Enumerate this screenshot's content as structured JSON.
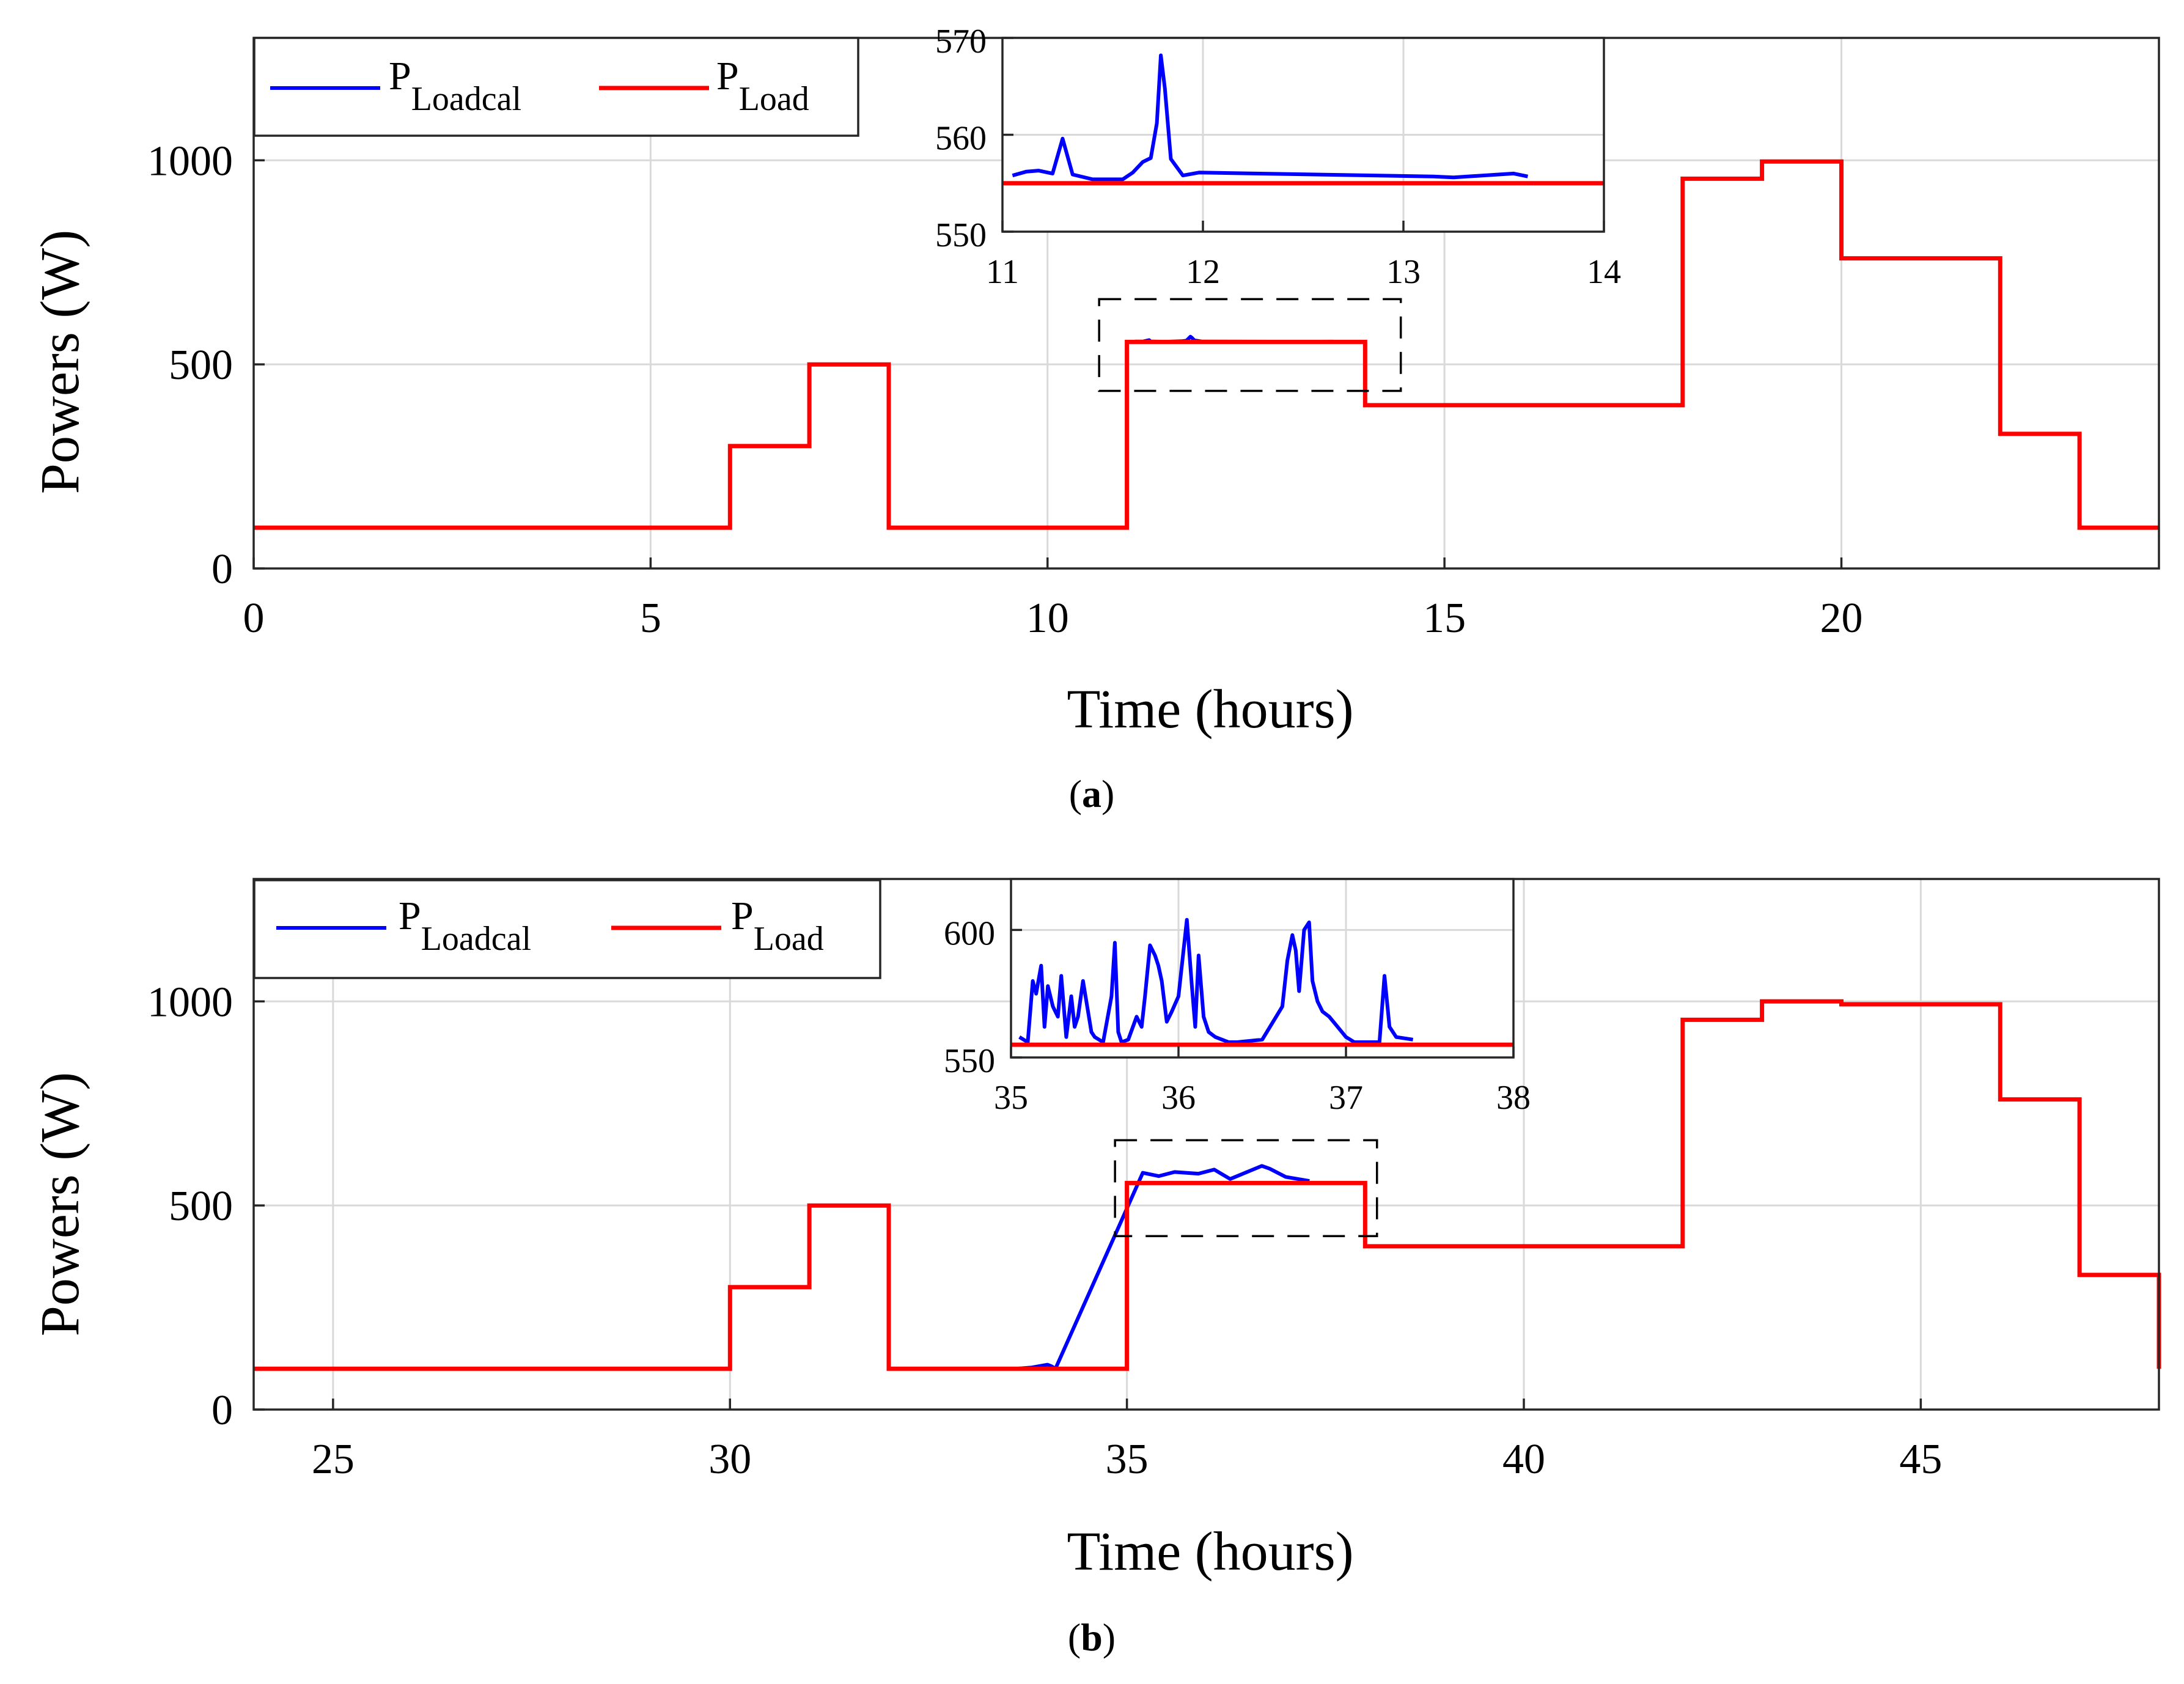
{
  "colors": {
    "calc": "#0000ff",
    "load": "#ff0000"
  },
  "chart_data": [
    {
      "id": "a",
      "type": "line",
      "caption_prefix": "(",
      "caption_letter": "a",
      "caption_suffix": ")",
      "xlabel": "Time (hours)",
      "ylabel": "Powers (W)",
      "xlim": [
        0,
        24
      ],
      "ylim": [
        0,
        1300
      ],
      "xticks": [
        0,
        5,
        10,
        15,
        20
      ],
      "yticks": [
        0,
        500,
        1000
      ],
      "legend": {
        "position": "top-left",
        "entries": [
          {
            "symbol": "P",
            "subscript": "Loadcal",
            "series": "calc"
          },
          {
            "symbol": "P",
            "subscript": "Load",
            "series": "load"
          }
        ]
      },
      "series": [
        {
          "name": "P_Load",
          "key": "load",
          "step": true,
          "x": [
            0,
            6,
            7,
            8,
            11,
            14,
            18,
            19,
            20,
            22,
            23,
            24
          ],
          "values": [
            100,
            300,
            500,
            100,
            555,
            400,
            955,
            997,
            760,
            330,
            100,
            100
          ]
        },
        {
          "name": "P_Loadcal",
          "key": "calc",
          "x": [
            11.1,
            11.2,
            11.28,
            11.3,
            11.32,
            11.5,
            11.7,
            11.75,
            11.8,
            11.82,
            11.85,
            11.95,
            13.2,
            13.6
          ],
          "values": [
            556,
            556,
            559.5,
            556,
            556,
            555.5,
            557,
            558,
            568,
            565,
            559,
            556,
            555.5,
            555.8
          ]
        }
      ],
      "zoom_box": {
        "x": [
          10.65,
          14.45
        ],
        "y": [
          435,
          660
        ]
      },
      "inset": {
        "position": "top-center",
        "xlim": [
          11,
          14
        ],
        "ylim": [
          550,
          570
        ],
        "xticks": [
          11,
          12,
          13,
          14
        ],
        "yticks": [
          550,
          560,
          570
        ],
        "series": [
          {
            "name": "P_Load",
            "key": "load",
            "step": true,
            "x": [
              11,
              14
            ],
            "values": [
              555,
              555
            ]
          },
          {
            "name": "P_Loadcal",
            "key": "calc",
            "x": [
              11.05,
              11.12,
              11.18,
              11.25,
              11.3,
              11.35,
              11.45,
              11.6,
              11.65,
              11.7,
              11.74,
              11.77,
              11.79,
              11.81,
              11.84,
              11.9,
              11.98,
              13.15,
              13.25,
              13.55,
              13.62
            ],
            "values": [
              555.8,
              556.2,
              556.3,
              556,
              559.6,
              555.9,
              555.4,
              555.4,
              556.1,
              557.2,
              557.6,
              561.2,
              568.2,
              564.8,
              557.5,
              555.8,
              556.1,
              555.7,
              555.6,
              556.0,
              555.7
            ]
          }
        ]
      }
    },
    {
      "id": "b",
      "type": "line",
      "caption_prefix": "(",
      "caption_letter": "b",
      "caption_suffix": ")",
      "xlabel": "Time (hours)",
      "ylabel": "Powers (W)",
      "xlim": [
        24,
        48
      ],
      "ylim": [
        0,
        1300
      ],
      "xticks": [
        25,
        30,
        35,
        40,
        45
      ],
      "yticks": [
        0,
        500,
        1000
      ],
      "legend": {
        "position": "top-left",
        "entries": [
          {
            "symbol": "P",
            "subscript": "Loadcal",
            "series": "calc"
          },
          {
            "symbol": "P",
            "subscript": "Load",
            "series": "load"
          }
        ]
      },
      "series": [
        {
          "name": "P_Load",
          "key": "load",
          "step": true,
          "x": [
            24,
            30,
            31,
            32,
            35,
            38,
            42,
            43,
            44,
            46,
            47,
            48
          ],
          "values": [
            100,
            300,
            500,
            100,
            555,
            400,
            955,
            1000,
            993,
            760,
            330,
            100
          ]
        },
        {
          "name": "P_Loadcal",
          "key": "calc",
          "x": [
            33.6,
            33.8,
            34.0,
            34.05,
            34.1,
            35.2,
            35.4,
            35.6,
            35.9,
            36.1,
            36.3,
            36.7,
            36.8,
            37.0,
            37.3
          ],
          "values": [
            100,
            103,
            110,
            106,
            100,
            580,
            572,
            582,
            578,
            588,
            565,
            597,
            590,
            570,
            560
          ]
        }
      ],
      "zoom_box": {
        "x": [
          34.85,
          38.15
        ],
        "y": [
          425,
          660
        ]
      },
      "inset": {
        "position": "top-center",
        "xlim": [
          35,
          38
        ],
        "ylim": [
          550,
          620
        ],
        "xticks": [
          35,
          36,
          37,
          38
        ],
        "yticks": [
          550,
          600
        ],
        "series": [
          {
            "name": "P_Load",
            "key": "load",
            "step": true,
            "x": [
              35,
              38
            ],
            "values": [
              555,
              555
            ]
          },
          {
            "name": "P_Loadcal",
            "key": "calc",
            "x": [
              35.05,
              35.1,
              35.13,
              35.15,
              35.18,
              35.2,
              35.22,
              35.25,
              35.28,
              35.3,
              35.33,
              35.36,
              35.38,
              35.4,
              35.43,
              35.45,
              35.48,
              35.5,
              35.55,
              35.6,
              35.62,
              35.64,
              35.66,
              35.7,
              35.75,
              35.78,
              35.8,
              35.83,
              35.86,
              35.88,
              35.9,
              35.93,
              35.96,
              36.0,
              36.05,
              36.08,
              36.1,
              36.12,
              36.15,
              36.18,
              36.22,
              36.26,
              36.3,
              36.35,
              36.5,
              36.62,
              36.65,
              36.68,
              36.7,
              36.72,
              36.75,
              36.78,
              36.8,
              36.83,
              36.86,
              36.9,
              36.95,
              37.0,
              37.05,
              37.2,
              37.23,
              37.26,
              37.3,
              37.4
            ],
            "values": [
              558,
              556,
              580,
              575,
              586,
              562,
              578,
              570,
              566,
              582,
              558,
              574,
              562,
              566,
              580,
              572,
              560,
              558,
              556,
              574,
              595,
              560,
              556,
              557,
              566,
              562,
              574,
              594,
              590,
              586,
              580,
              564,
              568,
              574,
              604,
              578,
              562,
              590,
              566,
              560,
              558,
              557,
              556,
              556,
              557,
              570,
              588,
              598,
              592,
              576,
              600,
              603,
              580,
              572,
              568,
              566,
              562,
              558,
              556,
              556,
              582,
              562,
              558,
              557
            ]
          }
        ]
      }
    }
  ]
}
